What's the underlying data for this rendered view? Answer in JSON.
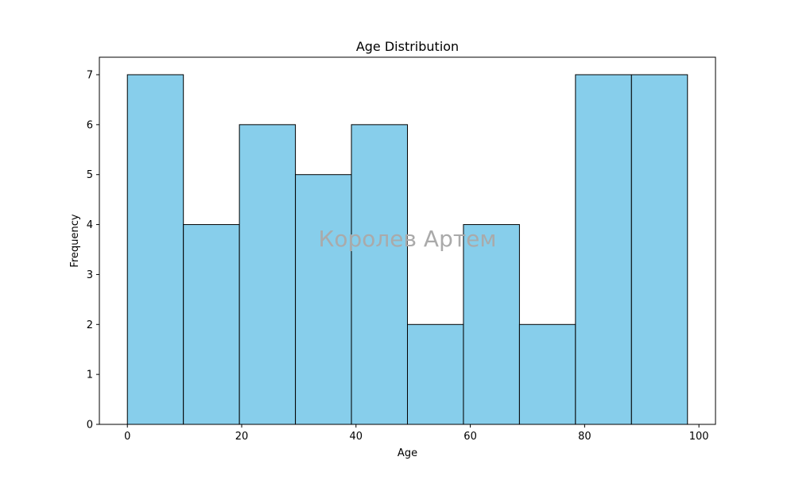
{
  "chart_data": {
    "type": "bar",
    "title": "Age Distribution",
    "xlabel": "Age",
    "ylabel": "Frequency",
    "bins": [
      {
        "start": 0.0,
        "end": 9.8,
        "count": 7
      },
      {
        "start": 9.8,
        "end": 19.6,
        "count": 4
      },
      {
        "start": 19.6,
        "end": 29.4,
        "count": 6
      },
      {
        "start": 29.4,
        "end": 39.2,
        "count": 5
      },
      {
        "start": 39.2,
        "end": 49.0,
        "count": 6
      },
      {
        "start": 49.0,
        "end": 58.8,
        "count": 2
      },
      {
        "start": 58.8,
        "end": 68.6,
        "count": 4
      },
      {
        "start": 68.6,
        "end": 78.4,
        "count": 2
      },
      {
        "start": 78.4,
        "end": 88.2,
        "count": 7
      },
      {
        "start": 88.2,
        "end": 98.0,
        "count": 7
      }
    ],
    "xlim": [
      -4.9,
      102.9
    ],
    "ylim": [
      0,
      7.35
    ],
    "xticks": [
      0,
      20,
      40,
      60,
      80,
      100
    ],
    "yticks": [
      0,
      1,
      2,
      3,
      4,
      5,
      6,
      7
    ],
    "bar_color": "#87ceeb",
    "edge_color": "#000000",
    "grid": false,
    "legend": "none"
  },
  "watermark": "Королев Артем"
}
